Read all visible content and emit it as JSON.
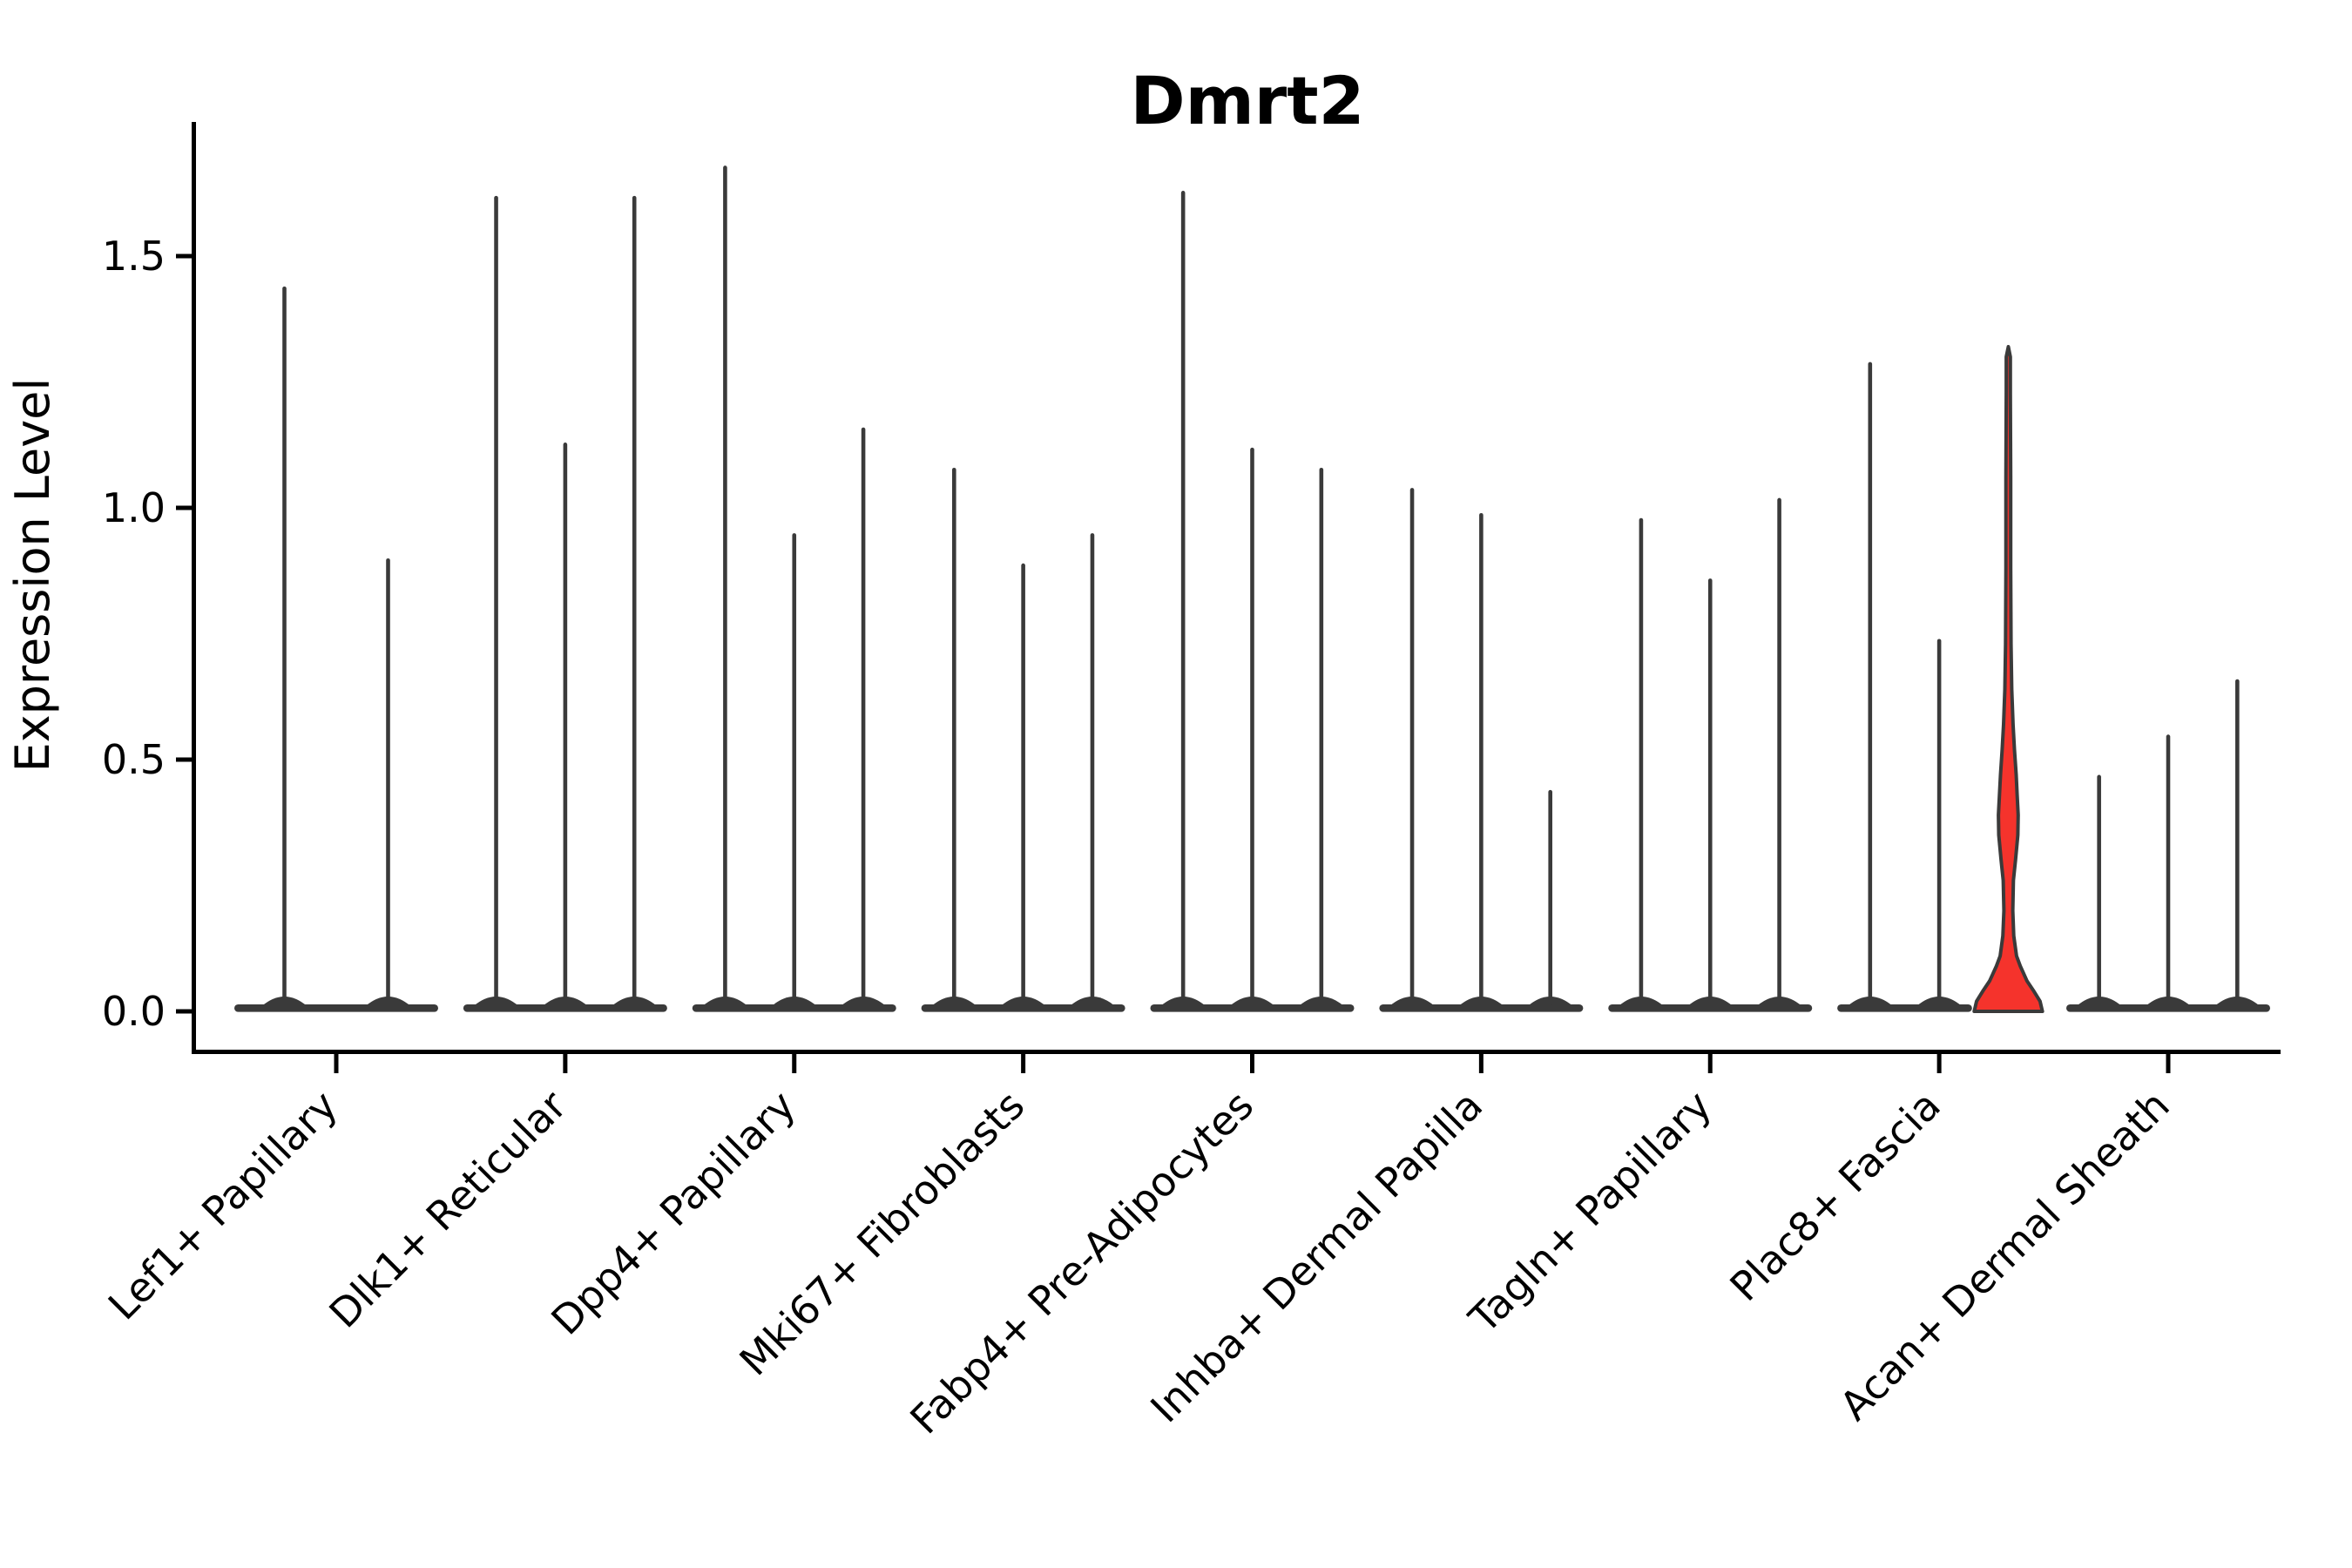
{
  "title": "Dmrt2",
  "ylabel": "Expression Level",
  "colors": {
    "violin_line": "#3a3a3a",
    "highlight_fill": "#f5332c",
    "axis": "#000000",
    "background": "#ffffff"
  },
  "y_axis": {
    "tick_labels": [
      "0.0",
      "0.5",
      "1.0",
      "1.5"
    ],
    "tick_values": [
      0.0,
      0.5,
      1.0,
      1.5
    ]
  },
  "chart_data": {
    "type": "violin",
    "title": "Dmrt2",
    "xlabel": "",
    "ylabel": "Expression Level",
    "ylim": [
      -0.08,
      1.77
    ],
    "yticks": [
      0.0,
      0.5,
      1.0,
      1.5
    ],
    "grid": false,
    "legend": "none",
    "categories": [
      "Lef1+ Papillary",
      "Dlk1+ Reticular",
      "Dpp4+ Papillary",
      "Mki67+ Fibroblasts",
      "Fabp4+ Pre-Adipocytes",
      "Inhba+ Dermal Papilla",
      "Tagln+ Papillary",
      "Plac8+ Fascia",
      "Acan+ Dermal Sheath"
    ],
    "groups": [
      {
        "category": "Lef1+ Papillary",
        "violins": [
          {
            "max": 1.44
          },
          {
            "max": 0.9
          }
        ]
      },
      {
        "category": "Dlk1+ Reticular",
        "violins": [
          {
            "max": 1.62
          },
          {
            "max": 1.13
          },
          {
            "max": 1.62
          }
        ]
      },
      {
        "category": "Dpp4+ Papillary",
        "violins": [
          {
            "max": 1.68
          },
          {
            "max": 0.95
          },
          {
            "max": 1.16
          }
        ]
      },
      {
        "category": "Mki67+ Fibroblasts",
        "violins": [
          {
            "max": 1.08
          },
          {
            "max": 0.89
          },
          {
            "max": 0.95
          }
        ]
      },
      {
        "category": "Fabp4+ Pre-Adipocytes",
        "violins": [
          {
            "max": 1.63
          },
          {
            "max": 1.12
          },
          {
            "max": 1.08
          }
        ]
      },
      {
        "category": "Inhba+ Dermal Papilla",
        "violins": [
          {
            "max": 1.04
          },
          {
            "max": 0.99
          },
          {
            "max": 0.44
          }
        ]
      },
      {
        "category": "Tagln+ Papillary",
        "violins": [
          {
            "max": 0.98
          },
          {
            "max": 0.86
          },
          {
            "max": 1.02
          }
        ]
      },
      {
        "category": "Plac8+ Fascia",
        "violins": [
          {
            "max": 1.29
          },
          {
            "max": 0.74
          },
          {
            "max": 1.32,
            "highlight": true,
            "profile": [
              [
                1.32,
                0.0
              ],
              [
                1.3,
                0.06
              ],
              [
                1.23,
                0.06
              ],
              [
                1.06,
                0.07
              ],
              [
                0.88,
                0.07
              ],
              [
                0.73,
                0.08
              ],
              [
                0.64,
                0.1
              ],
              [
                0.57,
                0.14
              ],
              [
                0.52,
                0.18
              ],
              [
                0.47,
                0.23
              ],
              [
                0.43,
                0.26
              ],
              [
                0.39,
                0.29
              ],
              [
                0.35,
                0.28
              ],
              [
                0.3,
                0.21
              ],
              [
                0.26,
                0.15
              ],
              [
                0.2,
                0.13
              ],
              [
                0.15,
                0.16
              ],
              [
                0.11,
                0.24
              ],
              [
                0.09,
                0.35
              ],
              [
                0.06,
                0.55
              ],
              [
                0.04,
                0.75
              ],
              [
                0.02,
                0.93
              ],
              [
                0.0,
                1.0
              ]
            ]
          }
        ]
      },
      {
        "category": "Acan+ Dermal Sheath",
        "violins": [
          {
            "max": 0.47
          },
          {
            "max": 0.55
          },
          {
            "max": 0.66
          }
        ]
      }
    ]
  }
}
